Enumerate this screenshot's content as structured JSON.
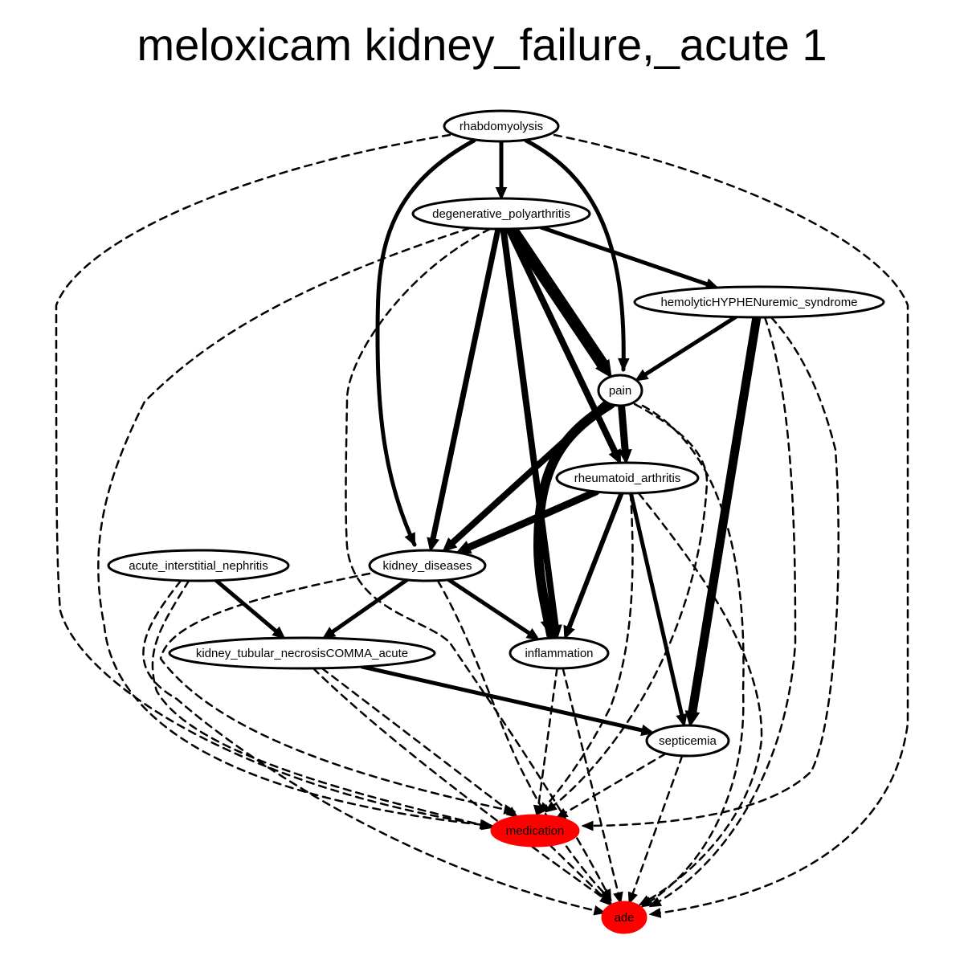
{
  "title": "meloxicam kidney_failure,_acute 1",
  "colors": {
    "highlight": "#ff0000",
    "default_fill": "#ffffff",
    "stroke": "#000000"
  },
  "nodes": [
    {
      "id": "rhabdomyolysis",
      "label": "rhabdomyolysis",
      "highlight": false
    },
    {
      "id": "degenerative_polyarthritis",
      "label": "degenerative_polyarthritis",
      "highlight": false
    },
    {
      "id": "hus",
      "label": "hemolyticHYPHENuremic_syndrome",
      "highlight": false
    },
    {
      "id": "pain",
      "label": "pain",
      "highlight": false
    },
    {
      "id": "rheumatoid_arthritis",
      "label": "rheumatoid_arthritis",
      "highlight": false
    },
    {
      "id": "ain",
      "label": "acute_interstitial_nephritis",
      "highlight": false
    },
    {
      "id": "kidney_diseases",
      "label": "kidney_diseases",
      "highlight": false
    },
    {
      "id": "ktn",
      "label": "kidney_tubular_necrosisCOMMA_acute",
      "highlight": false
    },
    {
      "id": "inflammation",
      "label": "inflammation",
      "highlight": false
    },
    {
      "id": "septicemia",
      "label": "septicemia",
      "highlight": false
    },
    {
      "id": "medication",
      "label": "medication",
      "highlight": true
    },
    {
      "id": "ade",
      "label": "ade",
      "highlight": true
    }
  ],
  "edges": [
    {
      "from": "rhabdomyolysis",
      "to": "degenerative_polyarthritis",
      "style": "solid",
      "weight": 5
    },
    {
      "from": "rhabdomyolysis",
      "to": "kidney_diseases",
      "style": "solid",
      "weight": 5
    },
    {
      "from": "rhabdomyolysis",
      "to": "pain",
      "style": "solid",
      "weight": 5
    },
    {
      "from": "rhabdomyolysis",
      "to": "medication",
      "style": "dashed",
      "weight": 2.5
    },
    {
      "from": "rhabdomyolysis",
      "to": "ade",
      "style": "dashed",
      "weight": 2.5
    },
    {
      "from": "degenerative_polyarthritis",
      "to": "hus",
      "style": "solid",
      "weight": 5
    },
    {
      "from": "degenerative_polyarthritis",
      "to": "pain",
      "style": "solid",
      "weight": 15
    },
    {
      "from": "degenerative_polyarthritis",
      "to": "rheumatoid_arthritis",
      "style": "solid",
      "weight": 8
    },
    {
      "from": "degenerative_polyarthritis",
      "to": "kidney_diseases",
      "style": "solid",
      "weight": 7
    },
    {
      "from": "degenerative_polyarthritis",
      "to": "inflammation",
      "style": "solid",
      "weight": 8
    },
    {
      "from": "degenerative_polyarthritis",
      "to": "medication",
      "style": "dashed",
      "weight": 2.5
    },
    {
      "from": "degenerative_polyarthritis",
      "to": "ade",
      "style": "dashed",
      "weight": 2.5
    },
    {
      "from": "hus",
      "to": "pain",
      "style": "solid",
      "weight": 5
    },
    {
      "from": "hus",
      "to": "septicemia",
      "style": "solid",
      "weight": 11
    },
    {
      "from": "hus",
      "to": "medication",
      "style": "dashed",
      "weight": 2.5
    },
    {
      "from": "hus",
      "to": "ade",
      "style": "dashed",
      "weight": 2.5
    },
    {
      "from": "pain",
      "to": "rheumatoid_arthritis",
      "style": "solid",
      "weight": 9
    },
    {
      "from": "pain",
      "to": "kidney_diseases",
      "style": "solid",
      "weight": 8
    },
    {
      "from": "pain",
      "to": "inflammation",
      "style": "solid",
      "weight": 12
    },
    {
      "from": "pain",
      "to": "medication",
      "style": "dashed",
      "weight": 2.5
    },
    {
      "from": "pain",
      "to": "ade",
      "style": "dashed",
      "weight": 2.5
    },
    {
      "from": "rheumatoid_arthritis",
      "to": "kidney_diseases",
      "style": "solid",
      "weight": 9
    },
    {
      "from": "rheumatoid_arthritis",
      "to": "inflammation",
      "style": "solid",
      "weight": 6
    },
    {
      "from": "rheumatoid_arthritis",
      "to": "septicemia",
      "style": "solid",
      "weight": 5
    },
    {
      "from": "rheumatoid_arthritis",
      "to": "medication",
      "style": "dashed",
      "weight": 2.5
    },
    {
      "from": "rheumatoid_arthritis",
      "to": "ade",
      "style": "dashed",
      "weight": 2.5
    },
    {
      "from": "ain",
      "to": "ktn",
      "style": "solid",
      "weight": 5
    },
    {
      "from": "ain",
      "to": "medication",
      "style": "dashed",
      "weight": 2.5
    },
    {
      "from": "ain",
      "to": "ade",
      "style": "dashed",
      "weight": 2.5
    },
    {
      "from": "kidney_diseases",
      "to": "ktn",
      "style": "solid",
      "weight": 5
    },
    {
      "from": "kidney_diseases",
      "to": "inflammation",
      "style": "solid",
      "weight": 5
    },
    {
      "from": "kidney_diseases",
      "to": "medication",
      "style": "dashed",
      "weight": 2.5
    },
    {
      "from": "kidney_diseases",
      "to": "ade",
      "style": "dashed",
      "weight": 2.5
    },
    {
      "from": "ktn",
      "to": "septicemia",
      "style": "solid",
      "weight": 5
    },
    {
      "from": "ktn",
      "to": "medication",
      "style": "dashed",
      "weight": 2.5
    },
    {
      "from": "ktn",
      "to": "ade",
      "style": "dashed",
      "weight": 2.5
    },
    {
      "from": "inflammation",
      "to": "medication",
      "style": "dashed",
      "weight": 2.5
    },
    {
      "from": "inflammation",
      "to": "ade",
      "style": "dashed",
      "weight": 2.5
    },
    {
      "from": "septicemia",
      "to": "medication",
      "style": "dashed",
      "weight": 2.5
    },
    {
      "from": "septicemia",
      "to": "ade",
      "style": "dashed",
      "weight": 2.5
    },
    {
      "from": "medication",
      "to": "ade",
      "style": "dashed",
      "weight": 2.5
    }
  ]
}
